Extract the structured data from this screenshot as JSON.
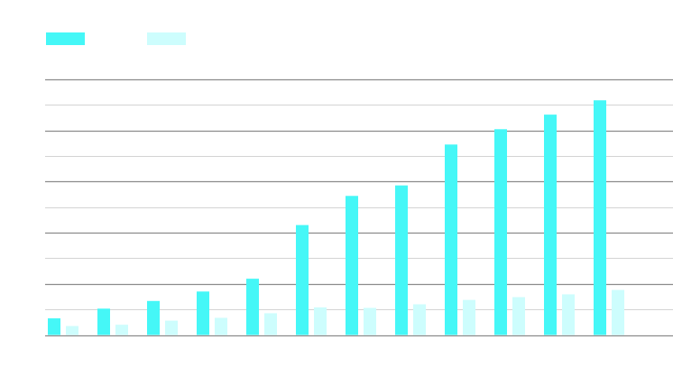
{
  "chart_data": {
    "type": "bar",
    "title": "",
    "xlabel": "",
    "ylabel": "",
    "categories": [
      "",
      "",
      "",
      "",
      "",
      "",
      "",
      "",
      "",
      "",
      "",
      ""
    ],
    "ylim": [
      0,
      100
    ],
    "grid": true,
    "legend_position": "top-left",
    "series": [
      {
        "color": "#45f7f7",
        "values": [
          6.5,
          10.3,
          13.3,
          17.0,
          22.0,
          43.0,
          54.4,
          58.5,
          74.5,
          80.5,
          86.2,
          91.8
        ]
      },
      {
        "color": "#cdfdfd",
        "values": [
          3.5,
          4.0,
          5.6,
          6.7,
          8.5,
          10.8,
          10.6,
          12.0,
          13.7,
          14.8,
          15.9,
          17.6
        ]
      }
    ]
  }
}
